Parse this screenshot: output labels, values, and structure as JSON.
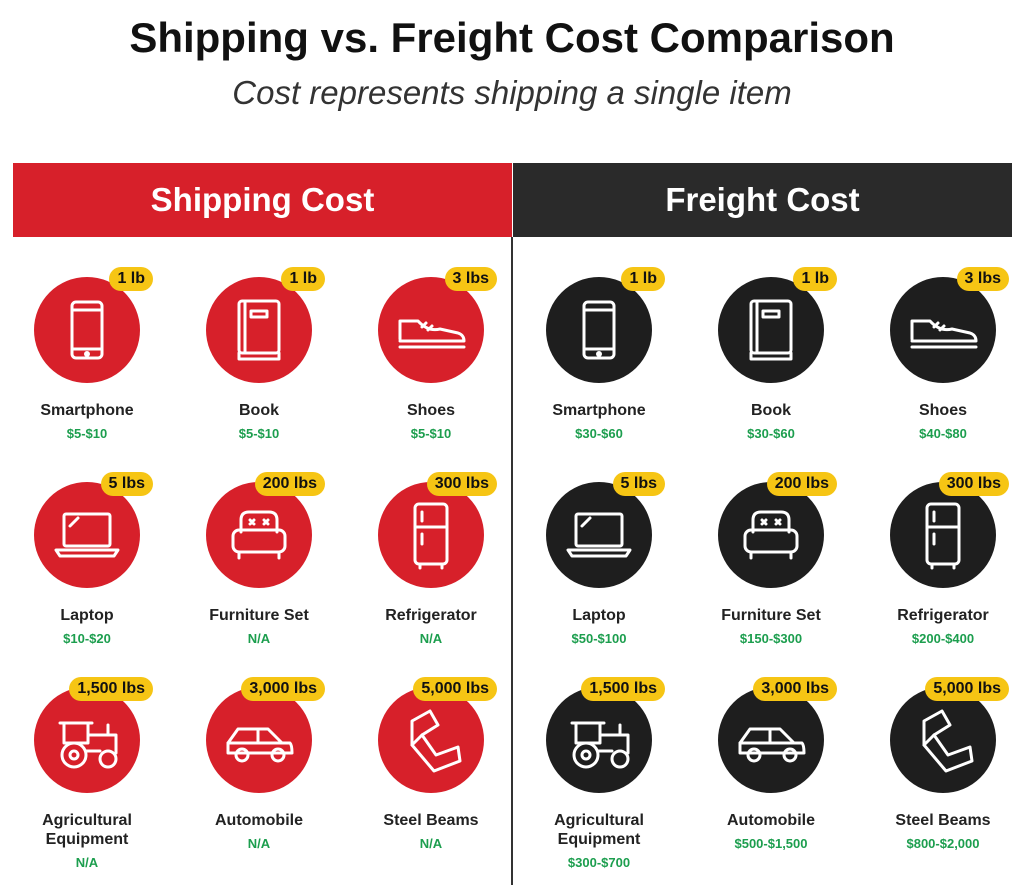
{
  "title": "Shipping vs. Freight Cost Comparison",
  "subtitle": "Cost represents shipping a single item",
  "panels": [
    {
      "heading": "Shipping Cost",
      "items": [
        {
          "weight": "1 lb",
          "name": "Smartphone",
          "price": "$5-$10"
        },
        {
          "weight": "1 lb",
          "name": "Book",
          "price": "$5-$10"
        },
        {
          "weight": "3 lbs",
          "name": "Shoes",
          "price": "$5-$10"
        },
        {
          "weight": "5 lbs",
          "name": "Laptop",
          "price": "$10-$20"
        },
        {
          "weight": "200 lbs",
          "name": "Furniture Set",
          "price": "N/A"
        },
        {
          "weight": "300 lbs",
          "name": "Refrigerator",
          "price": "N/A"
        },
        {
          "weight": "1,500 lbs",
          "name": "Agricultural Equipment",
          "price": "N/A"
        },
        {
          "weight": "3,000 lbs",
          "name": "Automobile",
          "price": "N/A"
        },
        {
          "weight": "5,000 lbs",
          "name": "Steel Beams",
          "price": "N/A"
        }
      ]
    },
    {
      "heading": "Freight Cost",
      "items": [
        {
          "weight": "1 lb",
          "name": "Smartphone",
          "price": "$30-$60"
        },
        {
          "weight": "1 lb",
          "name": "Book",
          "price": "$30-$60"
        },
        {
          "weight": "3 lbs",
          "name": "Shoes",
          "price": "$40-$80"
        },
        {
          "weight": "5 lbs",
          "name": "Laptop",
          "price": "$50-$100"
        },
        {
          "weight": "200 lbs",
          "name": "Furniture Set",
          "price": "$150-$300"
        },
        {
          "weight": "300 lbs",
          "name": "Refrigerator",
          "price": "$200-$400"
        },
        {
          "weight": "1,500 lbs",
          "name": "Agricultural Equipment",
          "price": "$300-$700"
        },
        {
          "weight": "3,000 lbs",
          "name": "Automobile",
          "price": "$500-$1,500"
        },
        {
          "weight": "5,000 lbs",
          "name": "Steel Beams",
          "price": "$800-$2,000"
        }
      ]
    }
  ]
}
